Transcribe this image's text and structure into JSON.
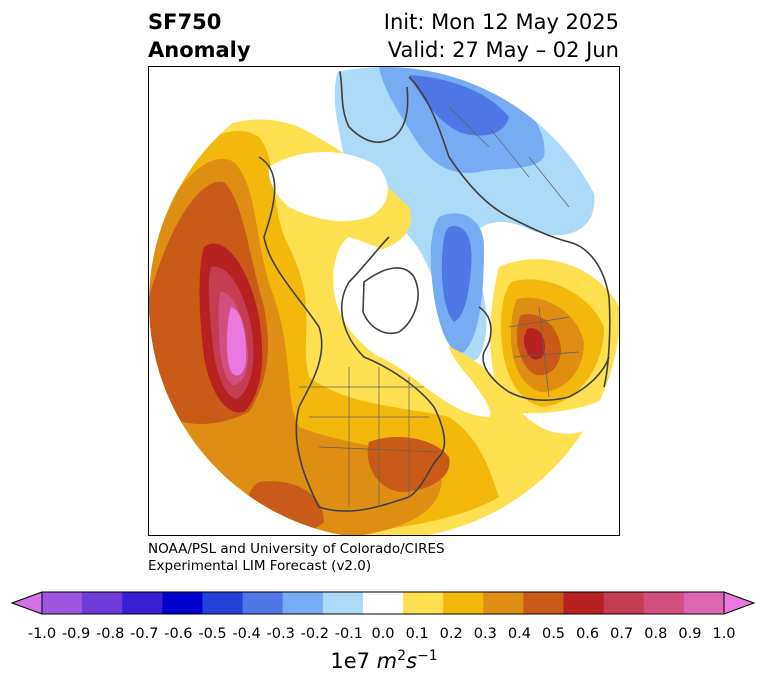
{
  "title": {
    "left_line1": "SF750",
    "left_line2": "Anomaly",
    "right_line1": "Init: Mon 12 May 2025",
    "right_line2": "Valid: 27 May – 02 Jun"
  },
  "credit": {
    "line1": "NOAA/PSL and University of Colorado/CIRES",
    "line2": "Experimental LIM Forecast (v2.0)"
  },
  "colorbar": {
    "ticks": [
      "-1.0",
      "-0.9",
      "-0.8",
      "-0.7",
      "-0.6",
      "-0.5",
      "-0.4",
      "-0.3",
      "-0.2",
      "-0.1",
      "0.0",
      "0.1",
      "0.2",
      "0.3",
      "0.4",
      "0.5",
      "0.6",
      "0.7",
      "0.8",
      "0.9",
      "1.0"
    ],
    "colors": [
      "#9f55e0",
      "#6d3cd9",
      "#3a1fd2",
      "#0000cc",
      "#2442d8",
      "#4f78e6",
      "#78acf2",
      "#acdaf9",
      "#ffffff",
      "#ffe050",
      "#f2b90c",
      "#df8e14",
      "#c95a18",
      "#b5221f",
      "#c53d52",
      "#d34f80",
      "#dd66b3"
    ],
    "under_color": "#d470e8",
    "over_color": "#ea78dd",
    "units_base": "1e7",
    "units_m": "m",
    "units_m_exp": "2",
    "units_s": "s",
    "units_s_exp": "−1"
  },
  "map": {
    "projection": "north polar stereographic",
    "field": "750 hPa streamfunction anomaly",
    "colors": {
      "neg_1": "#acdaf9",
      "neg_2": "#78acf2",
      "neg_3": "#4f78e6",
      "neg_4": "#2442d8",
      "pos_1": "#ffe050",
      "pos_2": "#f2b90c",
      "pos_3": "#df8e14",
      "pos_4": "#c95a18",
      "pos_5": "#b5221f",
      "pos_6": "#c53d52",
      "pos_7": "#d34f80",
      "pos_8": "#dd66b3",
      "pos_9": "#ea78dd"
    }
  }
}
